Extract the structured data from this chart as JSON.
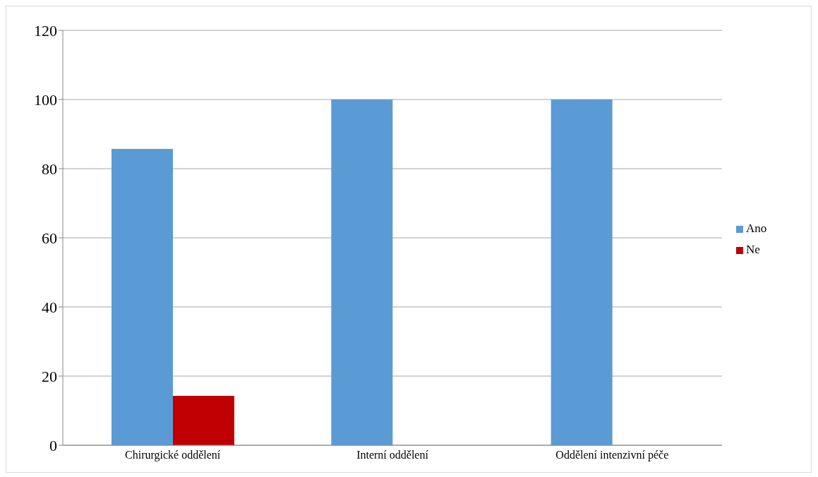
{
  "chart_data": {
    "type": "bar",
    "categories": [
      "Chirurgické oddělení",
      "Interní oddělení",
      "Oddělení intenzivní péče"
    ],
    "series": [
      {
        "name": "Ano",
        "color": "#5b9bd5",
        "values": [
          85.7,
          100,
          100
        ]
      },
      {
        "name": "Ne",
        "color": "#c00000",
        "values": [
          14.3,
          0,
          0
        ]
      }
    ],
    "ylim": [
      0,
      120
    ],
    "yticks": [
      0,
      20,
      40,
      60,
      80,
      100,
      120
    ],
    "grid": "y",
    "legend": "right"
  }
}
